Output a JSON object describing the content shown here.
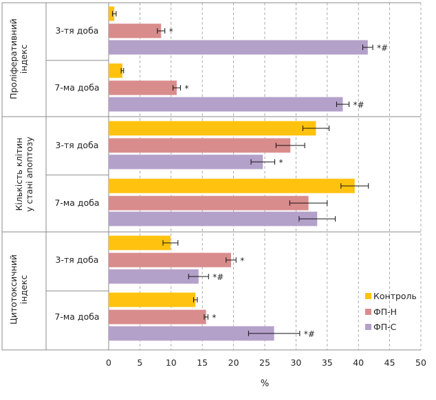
{
  "chart_data": {
    "type": "bar",
    "orientation": "horizontal",
    "xlabel": "%",
    "xlim": [
      0,
      50
    ],
    "xticks": [
      0,
      5,
      10,
      15,
      20,
      25,
      30,
      35,
      40,
      45,
      50
    ],
    "grid": "vertical dashed",
    "legend_placement": "bottom-right",
    "series": [
      {
        "name": "Контроль",
        "color": "#FFC20E"
      },
      {
        "name": "ФП-Н",
        "color": "#D98C8C"
      },
      {
        "name": "ФП-С",
        "color": "#B4A1CA"
      }
    ],
    "groups": [
      {
        "label": "Проліферативний індекс",
        "label_lines": [
          "Проліферативний",
          "індекс"
        ],
        "subgroups": [
          {
            "label": "3-тя доба",
            "values": [
              0.9,
              8.4,
              41.5
            ],
            "errors": [
              0.3,
              0.6,
              0.8
            ],
            "marks": [
              "",
              "*",
              "*#"
            ]
          },
          {
            "label": "7-ма доба",
            "values": [
              2.2,
              10.9,
              37.5
            ],
            "errors": [
              0.2,
              0.6,
              1.0
            ],
            "marks": [
              "",
              "*",
              "*#"
            ]
          }
        ]
      },
      {
        "label": "Кількість клітин у стані апоптозу",
        "label_lines": [
          "Кількість клітин",
          "у стані апоптозу"
        ],
        "subgroups": [
          {
            "label": "3-тя доба",
            "values": [
              33.2,
              29.1,
              24.7
            ],
            "errors": [
              2.1,
              2.3,
              1.9
            ],
            "marks": [
              "",
              "",
              "*"
            ]
          },
          {
            "label": "7-ма доба",
            "values": [
              39.4,
              32.0,
              33.4
            ],
            "errors": [
              2.2,
              3.0,
              2.9
            ],
            "marks": [
              "",
              "",
              ""
            ]
          }
        ]
      },
      {
        "label": "Цитотоксичний індекс",
        "label_lines": [
          "Цитотоксичний",
          "індекс"
        ],
        "subgroups": [
          {
            "label": "3-тя доба",
            "values": [
              9.9,
              19.6,
              14.4
            ],
            "errors": [
              1.2,
              0.8,
              1.6
            ],
            "marks": [
              "",
              "*",
              "*#"
            ]
          },
          {
            "label": "7-ма доба",
            "values": [
              13.9,
              15.6,
              26.5
            ],
            "errors": [
              0.3,
              0.3,
              4.1
            ],
            "marks": [
              "",
              "*",
              "*#"
            ]
          }
        ]
      }
    ]
  }
}
